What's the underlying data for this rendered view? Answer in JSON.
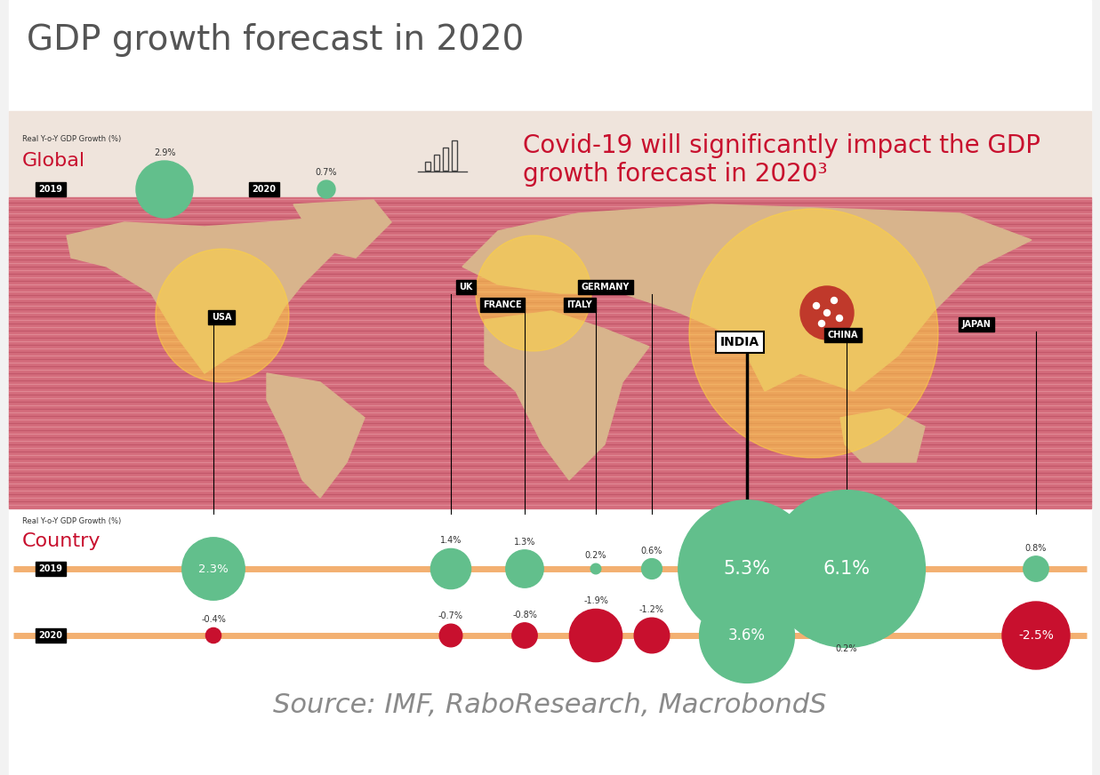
{
  "chart_data": {
    "type": "bubble",
    "title": "GDP growth forecast in 2020",
    "subtitle": "Covid-19 will significantly impact the GDP growth forecast in 2020³",
    "source": "Source: IMF, RaboResearch, MacrobondS",
    "data_labels": true,
    "global": {
      "label": "Global",
      "axis_label": "Real Y-o-Y GDP Growth (%)",
      "series": [
        {
          "name": "2019",
          "values": [
            2.9
          ],
          "value_labels": [
            "2.9%"
          ],
          "colors": [
            "#62bf8c"
          ]
        },
        {
          "name": "2020",
          "values": [
            0.7
          ],
          "value_labels": [
            "0.7%"
          ],
          "colors": [
            "#62bf8c"
          ]
        }
      ]
    },
    "country": {
      "label": "Country",
      "axis_label": "Real Y-o-Y GDP Growth (%)",
      "categories": [
        "USA",
        "UK",
        "FRANCE",
        "ITALY",
        "GERMANY",
        "INDIA",
        "CHINA",
        "JAPAN"
      ],
      "series": [
        {
          "name": "2019",
          "values": [
            2.3,
            1.4,
            1.3,
            0.2,
            0.6,
            5.3,
            6.1,
            0.8
          ],
          "value_labels": [
            "2.3%",
            "1.4%",
            "1.3%",
            "0.2%",
            "0.6%",
            "5.3%",
            "6.1%",
            "0.8%"
          ],
          "colors": [
            "#62bf8c",
            "#62bf8c",
            "#62bf8c",
            "#62bf8c",
            "#62bf8c",
            "#62bf8c",
            "#62bf8c",
            "#62bf8c"
          ]
        },
        {
          "name": "2020",
          "values": [
            -0.4,
            -0.7,
            -0.8,
            -1.9,
            -1.2,
            3.6,
            0.2,
            -2.5
          ],
          "value_labels": [
            "-0.4%",
            "-0.7%",
            "-0.8%",
            "-1.9%",
            "-1.2%",
            "3.6%",
            "0.2%",
            "-2.5%"
          ],
          "colors": [
            "#c8102e",
            "#c8102e",
            "#c8102e",
            "#c8102e",
            "#c8102e",
            "#62bf8c",
            "#62bf8c",
            "#c8102e"
          ]
        }
      ]
    }
  }
}
